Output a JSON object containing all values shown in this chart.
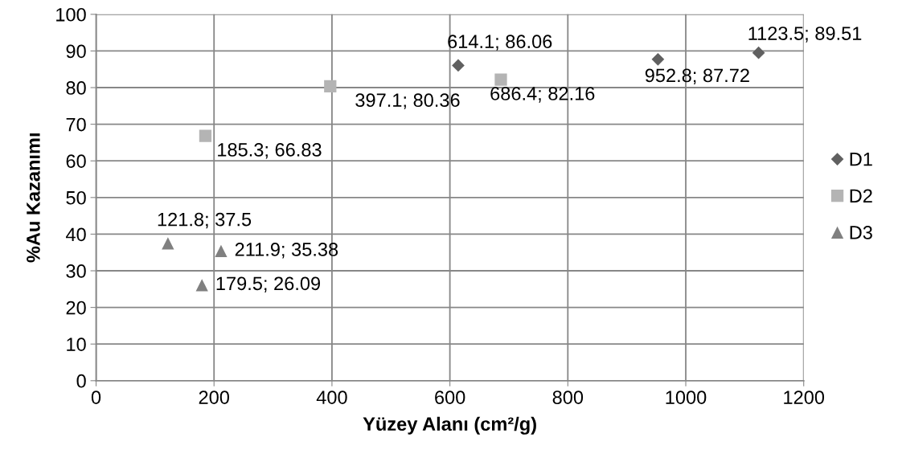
{
  "chart_data": {
    "type": "scatter",
    "xlabel": "Yüzey Alanı (cm²/g)",
    "ylabel": "%Au Kazanımı",
    "xlim": [
      0,
      1200
    ],
    "xticks": [
      0,
      200,
      400,
      600,
      800,
      1000,
      1200
    ],
    "ylim": [
      0,
      100
    ],
    "yticks": [
      0,
      10,
      20,
      30,
      40,
      50,
      60,
      70,
      80,
      90,
      100
    ],
    "grid": true,
    "legend": "right",
    "series": [
      {
        "name": "D1",
        "color": "#606060",
        "marker": "diamond",
        "x": [
          614.1,
          952.8,
          1123.5
        ],
        "values": [
          86.06,
          87.72,
          89.51
        ],
        "value_labels": [
          "614.1; 86.06",
          "952.8; 87.72",
          "1123.5; 89.51"
        ]
      },
      {
        "name": "D2",
        "color": "#b4b4b4",
        "marker": "square",
        "x": [
          185.3,
          397.1,
          686.4
        ],
        "values": [
          66.83,
          80.36,
          82.16
        ],
        "value_labels": [
          "185.3; 66.83",
          "397.1; 80.36",
          "686.4; 82.16"
        ]
      },
      {
        "name": "D3",
        "color": "#808080",
        "marker": "triangle",
        "x": [
          121.8,
          179.5,
          211.9
        ],
        "values": [
          37.5,
          26.09,
          35.38
        ],
        "value_labels": [
          "121.8; 37.5",
          "179.5; 26.09",
          "211.9; 35.38"
        ]
      }
    ]
  }
}
